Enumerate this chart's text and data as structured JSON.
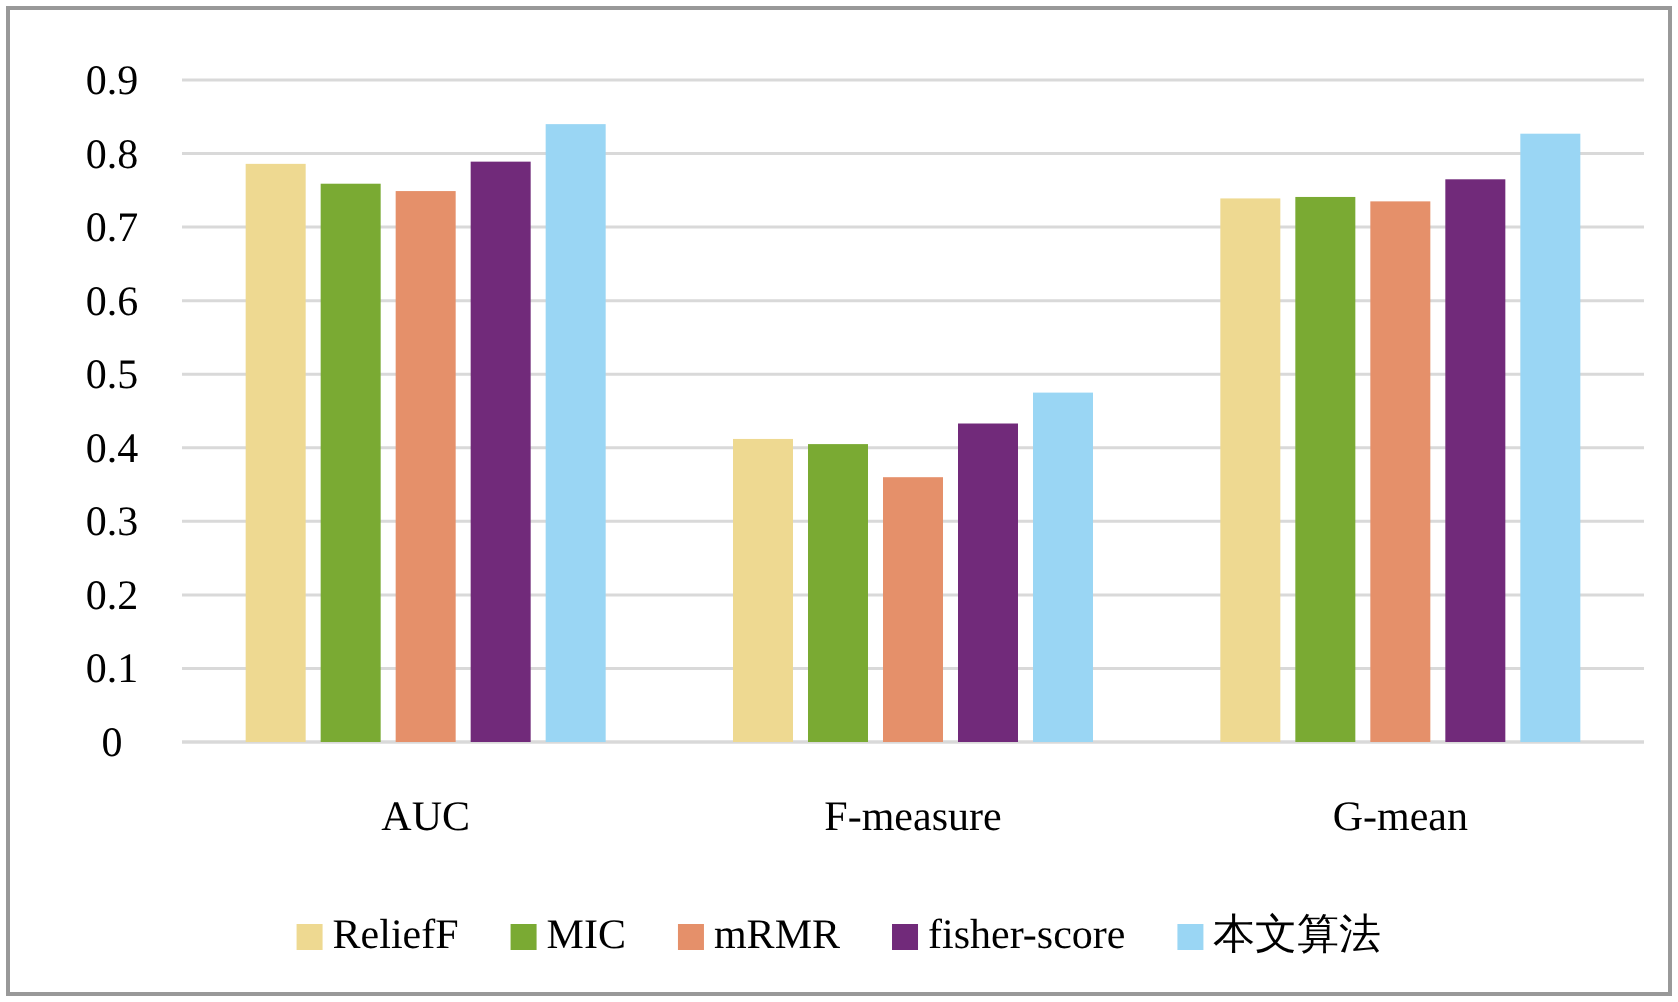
{
  "chart_data": {
    "type": "bar",
    "categories": [
      "AUC",
      "F-measure",
      "G-mean"
    ],
    "series": [
      {
        "name": "ReliefF",
        "color": "#eed991",
        "values": [
          0.786,
          0.412,
          0.739
        ]
      },
      {
        "name": "MIC",
        "color": "#7aaa33",
        "values": [
          0.759,
          0.405,
          0.741
        ]
      },
      {
        "name": "mRMR",
        "color": "#e5906a",
        "values": [
          0.749,
          0.36,
          0.735
        ]
      },
      {
        "name": "fisher-score",
        "color": "#712a7a",
        "values": [
          0.789,
          0.433,
          0.765
        ]
      },
      {
        "name": "本文算法",
        "color": "#9ad6f4",
        "values": [
          0.84,
          0.475,
          0.827
        ]
      }
    ],
    "ylim": [
      0,
      0.9
    ],
    "yticks": [
      0,
      0.1,
      0.2,
      0.3,
      0.4,
      0.5,
      0.6,
      0.7,
      0.8,
      0.9
    ],
    "grid": "y",
    "legend": "bottom"
  }
}
